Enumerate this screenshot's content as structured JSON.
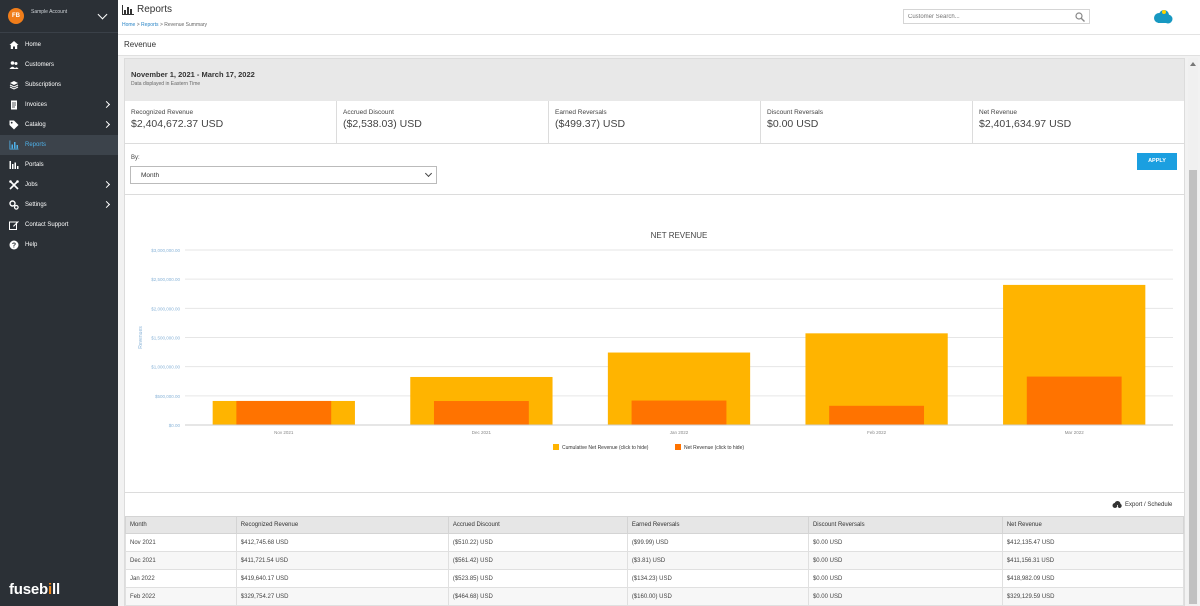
{
  "account": {
    "initials": "FB",
    "name": "Sample Account"
  },
  "nav": [
    {
      "key": "home",
      "label": "Home",
      "icon": "home-icon",
      "arrow": false,
      "active": false
    },
    {
      "key": "customers",
      "label": "Customers",
      "icon": "users-icon",
      "arrow": false,
      "active": false
    },
    {
      "key": "subscriptions",
      "label": "Subscriptions",
      "icon": "layers-icon",
      "arrow": false,
      "active": false
    },
    {
      "key": "invoices",
      "label": "Invoices",
      "icon": "invoice-icon",
      "arrow": true,
      "active": false
    },
    {
      "key": "catalog",
      "label": "Catalog",
      "icon": "tag-icon",
      "arrow": true,
      "active": false
    },
    {
      "key": "reports",
      "label": "Reports",
      "icon": "bar-chart-icon",
      "arrow": false,
      "active": true
    },
    {
      "key": "portals",
      "label": "Portals",
      "icon": "portal-icon",
      "arrow": false,
      "active": false
    },
    {
      "key": "jobs",
      "label": "Jobs",
      "icon": "tools-icon",
      "arrow": true,
      "active": false
    },
    {
      "key": "settings",
      "label": "Settings",
      "icon": "gear-icon",
      "arrow": true,
      "active": false
    },
    {
      "key": "contact-support",
      "label": "Contact Support",
      "icon": "edit-icon",
      "arrow": false,
      "active": false
    },
    {
      "key": "help",
      "label": "Help",
      "icon": "help-icon",
      "arrow": false,
      "active": false
    }
  ],
  "brand": {
    "prefix": "fuseb",
    "accent": "i",
    "suffix": "ll",
    "accent_color": "#f28a1e"
  },
  "header": {
    "title": "Reports",
    "breadcrumbs": [
      "Home",
      "Reports",
      "Revenue Summary"
    ],
    "search_placeholder": "Customer Search..."
  },
  "subheader": {
    "title": "Revenue"
  },
  "period": {
    "range": "November 1, 2021 - March 17, 2022",
    "note": "Data displayed in Eastern Time"
  },
  "summary": [
    {
      "label": "Recognized Revenue",
      "value": "$2,404,672.37 USD"
    },
    {
      "label": "Accrued Discount",
      "value": "($2,538.03) USD"
    },
    {
      "label": "Earned Reversals",
      "value": "($499.37) USD"
    },
    {
      "label": "Discount Reversals",
      "value": "$0.00 USD"
    },
    {
      "label": "Net Revenue",
      "value": "$2,401,634.97 USD"
    }
  ],
  "filter": {
    "by_label": "By:",
    "selected": "Month",
    "apply_label": "APPLY"
  },
  "chart_data": {
    "type": "bar",
    "title": "NET REVENUE",
    "ylabel": "Revenues",
    "xlabel": "",
    "categories": [
      "Nov 2021",
      "Dec 2021",
      "Jan 2022",
      "Feb 2022",
      "Mar 2022"
    ],
    "yticks": [
      "$0.00",
      "$500,000.00",
      "$1,000,000.00",
      "$1,500,000.00",
      "$2,000,000.00",
      "$2,500,000.00",
      "$3,000,000.00"
    ],
    "ylim": [
      0,
      3000000
    ],
    "series": [
      {
        "name": "Cumulative Net Revenue (click to hide)",
        "color": "#ffb400",
        "values": [
          412135.47,
          823291.78,
          1242273.87,
          1571403.46,
          2401634.97
        ]
      },
      {
        "name": "Net Revenue (click to hide)",
        "color": "#ff7300",
        "values": [
          412135.47,
          411156.31,
          418982.09,
          329129.59,
          830231.51
        ]
      }
    ],
    "grid": true,
    "legend": "bottom"
  },
  "export": {
    "label": "Export / Schedule"
  },
  "table": {
    "columns": [
      "Month",
      "Recognized Revenue",
      "Accrued Discount",
      "Earned Reversals",
      "Discount Reversals",
      "Net Revenue"
    ],
    "rows": [
      [
        "Nov 2021",
        "$412,745.68 USD",
        "($510.22) USD",
        "($99.99) USD",
        "$0.00 USD",
        "$412,135.47 USD"
      ],
      [
        "Dec 2021",
        "$411,721.54 USD",
        "($561.42) USD",
        "($3.81) USD",
        "$0.00 USD",
        "$411,156.31 USD"
      ],
      [
        "Jan 2022",
        "$419,640.17 USD",
        "($523.85) USD",
        "($134.23) USD",
        "$0.00 USD",
        "$418,982.09 USD"
      ],
      [
        "Feb 2022",
        "$329,754.27 USD",
        "($464.68) USD",
        "($160.00) USD",
        "$0.00 USD",
        "$329,129.59 USD"
      ]
    ]
  }
}
